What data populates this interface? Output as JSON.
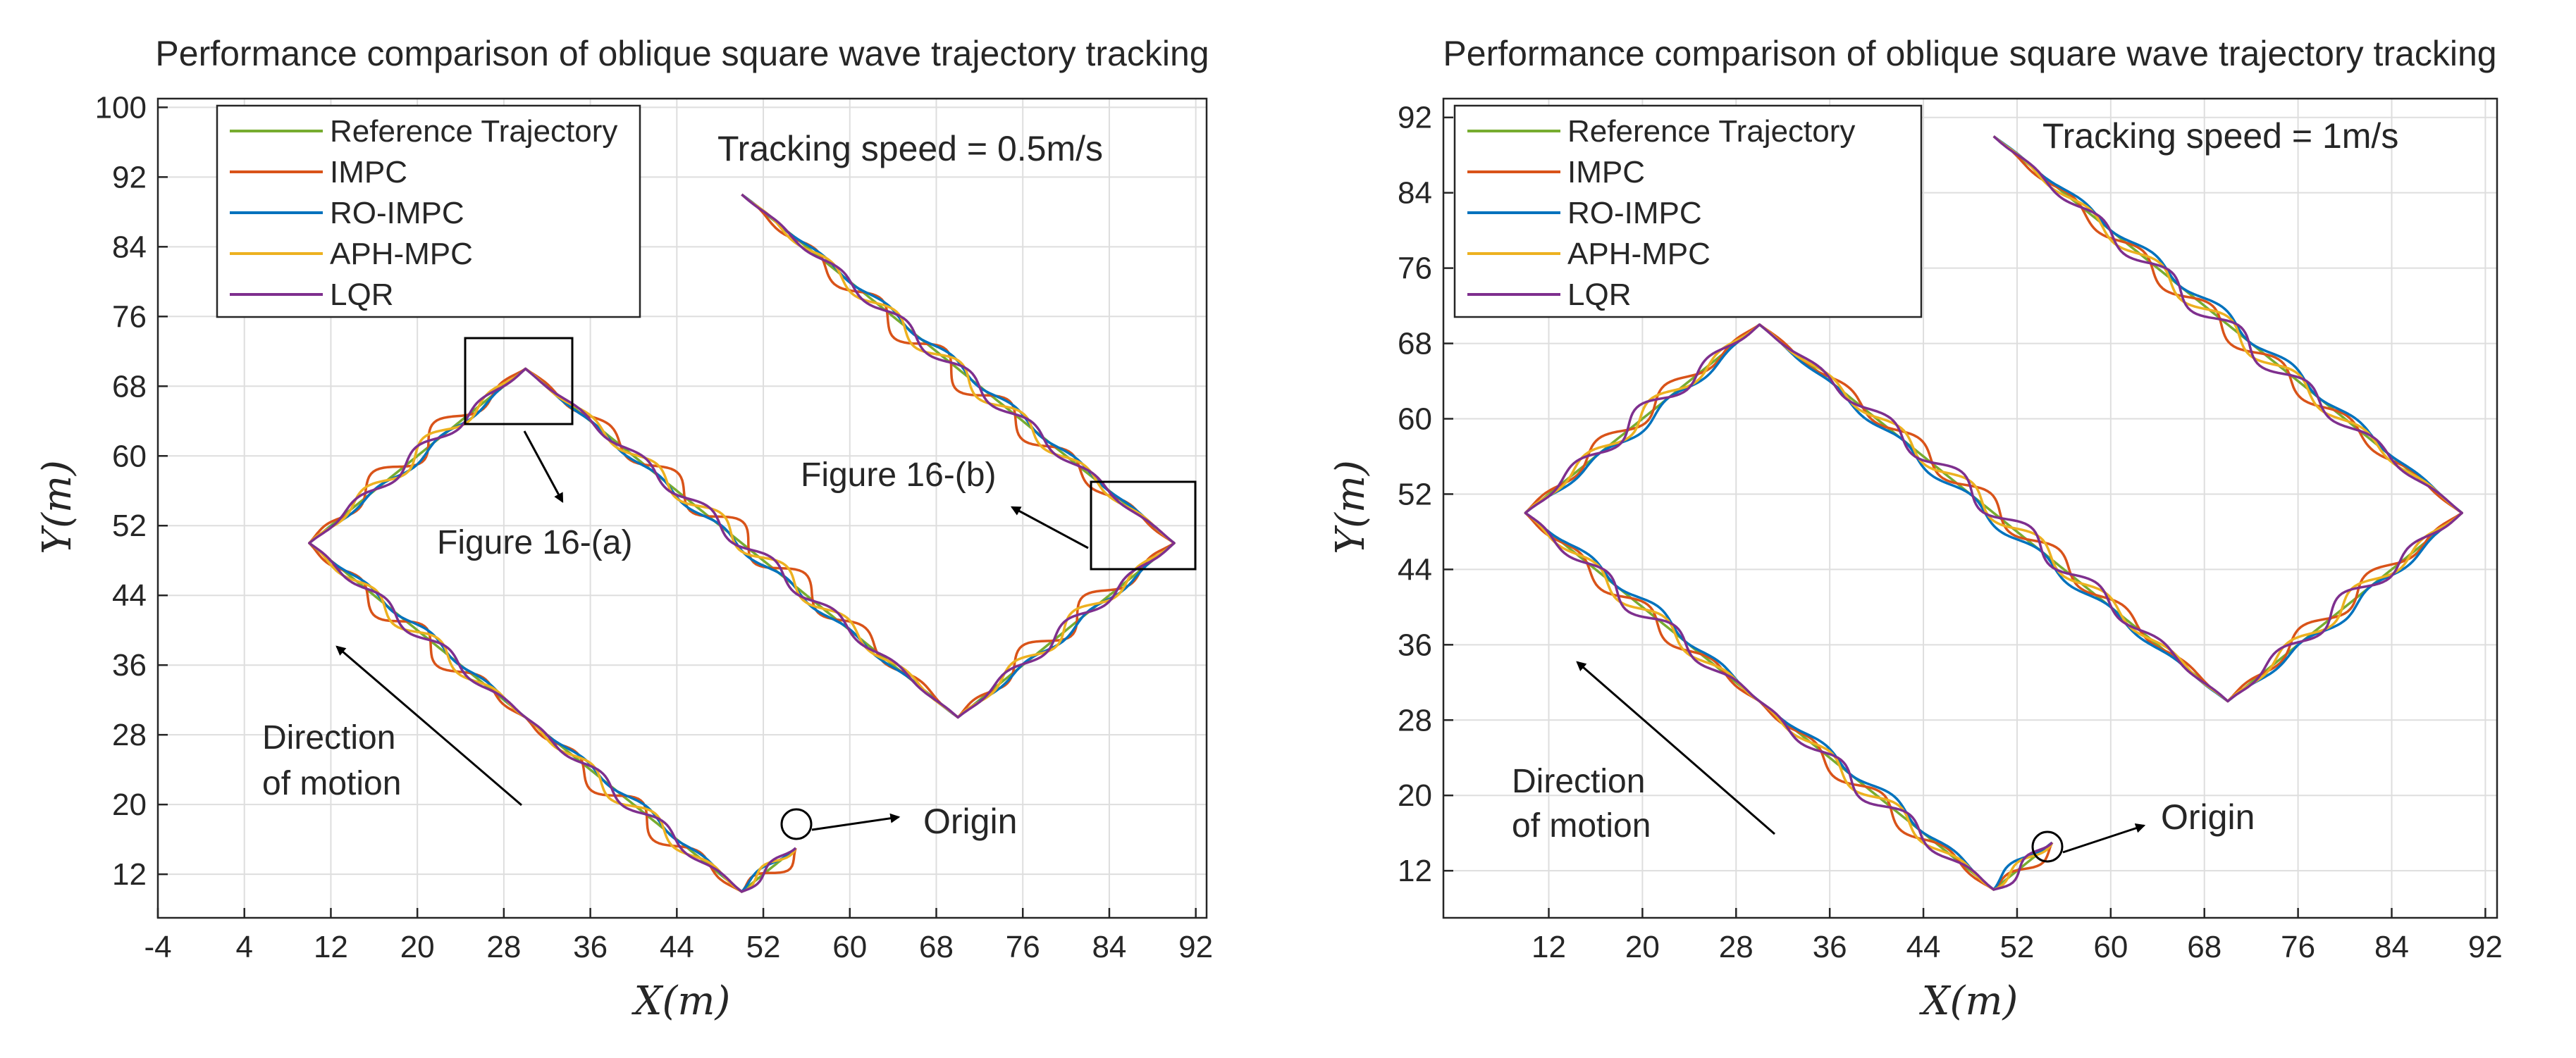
{
  "colors": {
    "reference": "#77ac30",
    "impc": "#d95319",
    "ro_impc": "#0072bd",
    "aph_mpc": "#edb120",
    "lqr": "#7e2f8e",
    "grid": "#dedede",
    "axis": "#262626",
    "annotation": "#000000"
  },
  "chart_data": [
    {
      "type": "line",
      "title": "Performance comparison of oblique square wave trajectory tracking",
      "xlabel": "X(m)",
      "ylabel": "Y(m)",
      "xlim": [
        -4,
        93
      ],
      "ylim": [
        7,
        101
      ],
      "xticks": [
        -4,
        4,
        12,
        20,
        28,
        36,
        44,
        52,
        60,
        68,
        76,
        84,
        92
      ],
      "yticks": [
        12,
        20,
        28,
        36,
        44,
        52,
        60,
        68,
        76,
        84,
        92,
        100
      ],
      "grid": true,
      "legend_position": "top-left",
      "annotations": {
        "speed": "Tracking speed = 0.5m/s",
        "fig_a": "Figure 16-(a)",
        "fig_b": "Figure 16-(b)",
        "direction_1": "Direction",
        "direction_2": "of motion",
        "origin": "Origin"
      },
      "reference_path": [
        [
          55,
          15
        ],
        [
          50,
          10
        ],
        [
          30,
          30
        ],
        [
          10,
          50
        ],
        [
          30,
          70
        ],
        [
          70,
          30
        ],
        [
          90,
          50
        ],
        [
          50,
          90
        ]
      ],
      "series": [
        {
          "name": "Reference Trajectory",
          "color_key": "reference",
          "amplitude": 0,
          "phase": 0,
          "offset": 0,
          "points": [
            [
              55,
              15
            ],
            [
              50,
              10
            ],
            [
              30,
              30
            ],
            [
              10,
              50
            ],
            [
              30,
              70
            ],
            [
              70,
              30
            ],
            [
              90,
              50
            ],
            [
              50,
              90
            ]
          ]
        },
        {
          "name": "IMPC",
          "color_key": "impc",
          "amplitude": 1.3,
          "phase": 0.5,
          "offset": 0.5,
          "points": [
            [
              55,
              15
            ],
            [
              50,
              10
            ],
            [
              30,
              30
            ],
            [
              10,
              50
            ],
            [
              30,
              70
            ],
            [
              70,
              30
            ],
            [
              90,
              50
            ],
            [
              50,
              90
            ]
          ]
        },
        {
          "name": "RO-IMPC",
          "color_key": "ro_impc",
          "amplitude": 0.4,
          "phase": 1.2,
          "offset": -0.3,
          "points": [
            [
              55,
              15
            ],
            [
              50,
              10
            ],
            [
              30,
              30
            ],
            [
              10,
              50
            ],
            [
              30,
              70
            ],
            [
              70,
              30
            ],
            [
              90,
              50
            ],
            [
              50,
              90
            ]
          ]
        },
        {
          "name": "APH-MPC",
          "color_key": "aph_mpc",
          "amplitude": 0.9,
          "phase": 2.0,
          "offset": 0.2,
          "points": [
            [
              55,
              15
            ],
            [
              50,
              10
            ],
            [
              30,
              30
            ],
            [
              10,
              50
            ],
            [
              30,
              70
            ],
            [
              70,
              30
            ],
            [
              90,
              50
            ],
            [
              50,
              90
            ]
          ]
        },
        {
          "name": "LQR",
          "color_key": "lqr",
          "amplitude": 0.7,
          "phase": 3.0,
          "offset": 0.1,
          "points": [
            [
              55,
              15
            ],
            [
              50,
              10
            ],
            [
              30,
              30
            ],
            [
              10,
              50
            ],
            [
              30,
              70
            ],
            [
              70,
              30
            ],
            [
              90,
              50
            ],
            [
              50,
              90
            ]
          ]
        }
      ]
    },
    {
      "type": "line",
      "title": "Performance comparison of oblique square wave trajectory tracking",
      "xlabel": "X(m)",
      "ylabel": "Y(m)",
      "xlim": [
        3,
        93
      ],
      "ylim": [
        7,
        94
      ],
      "xticks": [
        12,
        20,
        28,
        36,
        44,
        52,
        60,
        68,
        76,
        84,
        92
      ],
      "yticks": [
        12,
        20,
        28,
        36,
        44,
        52,
        60,
        68,
        76,
        84,
        92
      ],
      "grid": true,
      "legend_position": "top-left",
      "annotations": {
        "speed": "Tracking speed = 1m/s",
        "direction_1": "Direction",
        "direction_2": "of motion",
        "origin": "Origin"
      },
      "reference_path": [
        [
          55,
          15
        ],
        [
          50,
          10
        ],
        [
          30,
          30
        ],
        [
          10,
          50
        ],
        [
          30,
          70
        ],
        [
          70,
          30
        ],
        [
          90,
          50
        ],
        [
          50,
          90
        ]
      ],
      "series": [
        {
          "name": "Reference Trajectory",
          "color_key": "reference",
          "amplitude": 0,
          "phase": 0,
          "offset": 0,
          "points": [
            [
              55,
              15
            ],
            [
              50,
              10
            ],
            [
              30,
              30
            ],
            [
              10,
              50
            ],
            [
              30,
              70
            ],
            [
              70,
              30
            ],
            [
              90,
              50
            ],
            [
              50,
              90
            ]
          ]
        },
        {
          "name": "IMPC",
          "color_key": "impc",
          "amplitude": 0.9,
          "phase": 0.5,
          "offset": 0.4,
          "points": [
            [
              55,
              15
            ],
            [
              50,
              10
            ],
            [
              30,
              30
            ],
            [
              10,
              50
            ],
            [
              30,
              70
            ],
            [
              70,
              30
            ],
            [
              90,
              50
            ],
            [
              50,
              90
            ]
          ]
        },
        {
          "name": "RO-IMPC",
          "color_key": "ro_impc",
          "amplitude": 0.5,
          "phase": 1.2,
          "offset": -0.5,
          "points": [
            [
              55,
              15
            ],
            [
              50,
              10
            ],
            [
              30,
              30
            ],
            [
              10,
              50
            ],
            [
              30,
              70
            ],
            [
              70,
              30
            ],
            [
              90,
              50
            ],
            [
              50,
              90
            ]
          ]
        },
        {
          "name": "APH-MPC",
          "color_key": "aph_mpc",
          "amplitude": 0.8,
          "phase": 2.0,
          "offset": 0.2,
          "points": [
            [
              55,
              15
            ],
            [
              50,
              10
            ],
            [
              30,
              30
            ],
            [
              10,
              50
            ],
            [
              30,
              70
            ],
            [
              70,
              30
            ],
            [
              90,
              50
            ],
            [
              50,
              90
            ]
          ]
        },
        {
          "name": "LQR",
          "color_key": "lqr",
          "amplitude": 0.9,
          "phase": 3.0,
          "offset": 0.3,
          "points": [
            [
              55,
              15
            ],
            [
              50,
              10
            ],
            [
              30,
              30
            ],
            [
              10,
              50
            ],
            [
              30,
              70
            ],
            [
              70,
              30
            ],
            [
              90,
              50
            ],
            [
              50,
              90
            ]
          ]
        }
      ]
    }
  ]
}
